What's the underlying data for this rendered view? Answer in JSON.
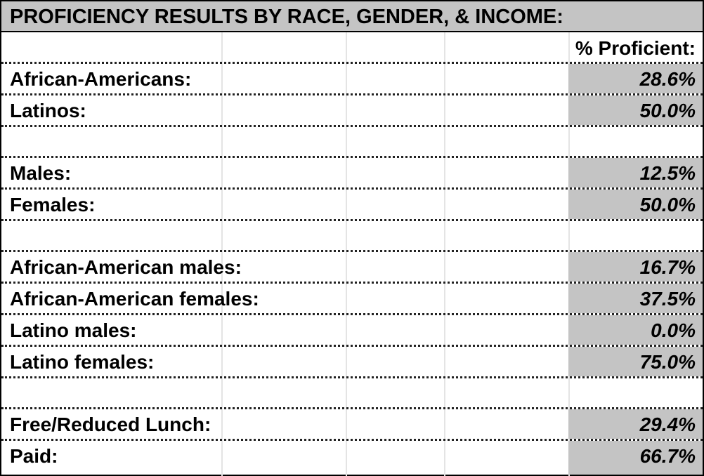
{
  "title": "PROFICIENCY RESULTS BY RACE, GENDER, & INCOME:",
  "column_header": "% Proficient:",
  "groups": [
    [
      {
        "label": "African-Americans:",
        "value": "28.6%"
      },
      {
        "label": "Latinos:",
        "value": "50.0%"
      }
    ],
    [
      {
        "label": "Males:",
        "value": "12.5%"
      },
      {
        "label": "Females:",
        "value": "50.0%"
      }
    ],
    [
      {
        "label": "African-American males:",
        "value": "16.7%"
      },
      {
        "label": "African-American females:",
        "value": "37.5%"
      },
      {
        "label": "Latino males:",
        "value": "0.0%"
      },
      {
        "label": "Latino females:",
        "value": "75.0%"
      }
    ],
    [
      {
        "label": "Free/Reduced Lunch:",
        "value": "29.4%"
      },
      {
        "label": "Paid:",
        "value": "66.7%"
      }
    ]
  ]
}
